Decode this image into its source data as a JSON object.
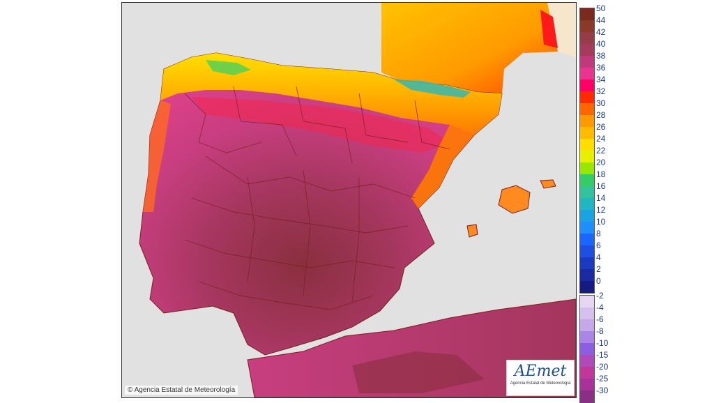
{
  "map": {
    "copyright_text": "© Agencia Estatal de Meteorología",
    "logo": {
      "mark": "AEmet",
      "subtitle": "Agencia Estatal de Meteorología"
    },
    "colors": {
      "sea": "#e1e1e1",
      "france_land": "#f5e6cc",
      "coast_line": "#7a1e1e",
      "region_fill": [
        "#8a2f3f",
        "#a3365c",
        "#c83e80",
        "#e0408a",
        "#ff0000",
        "#ff7a00",
        "#ffb000",
        "#ffe000",
        "#55d055",
        "#3fb7a7"
      ]
    }
  },
  "legend": {
    "positive": [
      {
        "label": "50",
        "color": "#7a2a1e"
      },
      {
        "label": "44",
        "color": "#8b3a2a"
      },
      {
        "label": "42",
        "color": "#963c48"
      },
      {
        "label": "40",
        "color": "#a43a5c"
      },
      {
        "label": "38",
        "color": "#c0397a"
      },
      {
        "label": "36",
        "color": "#e8358f"
      },
      {
        "label": "34",
        "color": "#ff0066"
      },
      {
        "label": "32",
        "color": "#ff2a00"
      },
      {
        "label": "30",
        "color": "#ff6600"
      },
      {
        "label": "28",
        "color": "#ff9900"
      },
      {
        "label": "26",
        "color": "#ffbb00"
      },
      {
        "label": "24",
        "color": "#ffdd00"
      },
      {
        "label": "22",
        "color": "#e8f000"
      },
      {
        "label": "20",
        "color": "#99e600"
      },
      {
        "label": "18",
        "color": "#33cc66"
      },
      {
        "label": "16",
        "color": "#33c2a0"
      },
      {
        "label": "14",
        "color": "#22b5c4"
      },
      {
        "label": "12",
        "color": "#1aa3e0"
      },
      {
        "label": "10",
        "color": "#1f8fff"
      },
      {
        "label": "8",
        "color": "#1a66ff"
      },
      {
        "label": "6",
        "color": "#1f4fe0"
      },
      {
        "label": "4",
        "color": "#1a3ac0"
      },
      {
        "label": "2",
        "color": "#1a2aa0"
      },
      {
        "label": "0",
        "color": "#141a80"
      }
    ],
    "negative": [
      {
        "label": "-2",
        "color": "#e6d6f2"
      },
      {
        "label": "-4",
        "color": "#d6c0ee"
      },
      {
        "label": "-6",
        "color": "#c4a8ea"
      },
      {
        "label": "-8",
        "color": "#a985e6"
      },
      {
        "label": "-10",
        "color": "#8c5ee0"
      },
      {
        "label": "-15",
        "color": "#b04ab8"
      },
      {
        "label": "-20",
        "color": "#c2389a"
      },
      {
        "label": "-25",
        "color": "#a8329a"
      },
      {
        "label": "-30",
        "color": "#8a2e88"
      }
    ]
  }
}
